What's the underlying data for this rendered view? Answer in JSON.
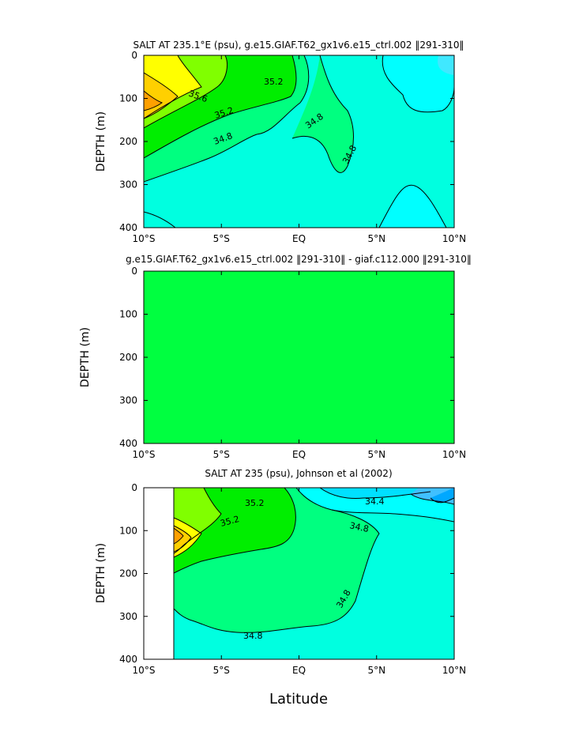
{
  "chart_data": [
    {
      "type": "contour",
      "title": "SALT AT 235.1°E (psu), g.e15.GIAF.T62_gx1v6.e15_ctrl.002 ‖291-310‖",
      "ylabel": "DEPTH (m)",
      "xlabel": "",
      "x_ticks": [
        "10°S",
        "5°S",
        "EQ",
        "5°N",
        "10°N"
      ],
      "y_ticks": [
        "0",
        "100",
        "200",
        "300",
        "400"
      ],
      "xlim": [
        -10,
        10
      ],
      "ylim": [
        400,
        0
      ],
      "contour_labels": [
        "35.6",
        "35.2",
        "35.2",
        "34.8",
        "34.8",
        "34.8"
      ],
      "fill_colors": [
        "#00ffff",
        "#00ffe0",
        "#00ff80",
        "#00f000",
        "#80ff00",
        "#ffff00",
        "#ffd000",
        "#ffa000"
      ]
    },
    {
      "type": "contour",
      "title": "g.e15.GIAF.T62_gx1v6.e15_ctrl.002 ‖291-310‖ - giaf.c112.000 ‖291-310‖",
      "ylabel": "DEPTH (m)",
      "xlabel": "",
      "x_ticks": [
        "10°S",
        "5°S",
        "EQ",
        "5°N",
        "10°N"
      ],
      "y_ticks": [
        "0",
        "100",
        "200",
        "300",
        "400"
      ],
      "xlim": [
        -10,
        10
      ],
      "ylim": [
        400,
        0
      ],
      "contour_labels": [],
      "fill_colors": [
        "#00ff40"
      ]
    },
    {
      "type": "contour",
      "title": "SALT AT 235 (psu), Johnson et al (2002)",
      "ylabel": "DEPTH (m)",
      "xlabel": "Latitude",
      "x_ticks": [
        "10°S",
        "5°S",
        "EQ",
        "5°N",
        "10°N"
      ],
      "y_ticks": [
        "0",
        "100",
        "200",
        "300",
        "400"
      ],
      "xlim": [
        -10,
        10
      ],
      "ylim": [
        400,
        0
      ],
      "contour_labels": [
        "35.2",
        "35.2",
        "34.4",
        "34.8",
        "34.8",
        "34.8"
      ],
      "fill_colors": [
        "#00a8ff",
        "#00e0ff",
        "#00ffe0",
        "#00ff80",
        "#00f000",
        "#80ff00",
        "#ffff00",
        "#ffd000",
        "#ffa000"
      ]
    }
  ]
}
